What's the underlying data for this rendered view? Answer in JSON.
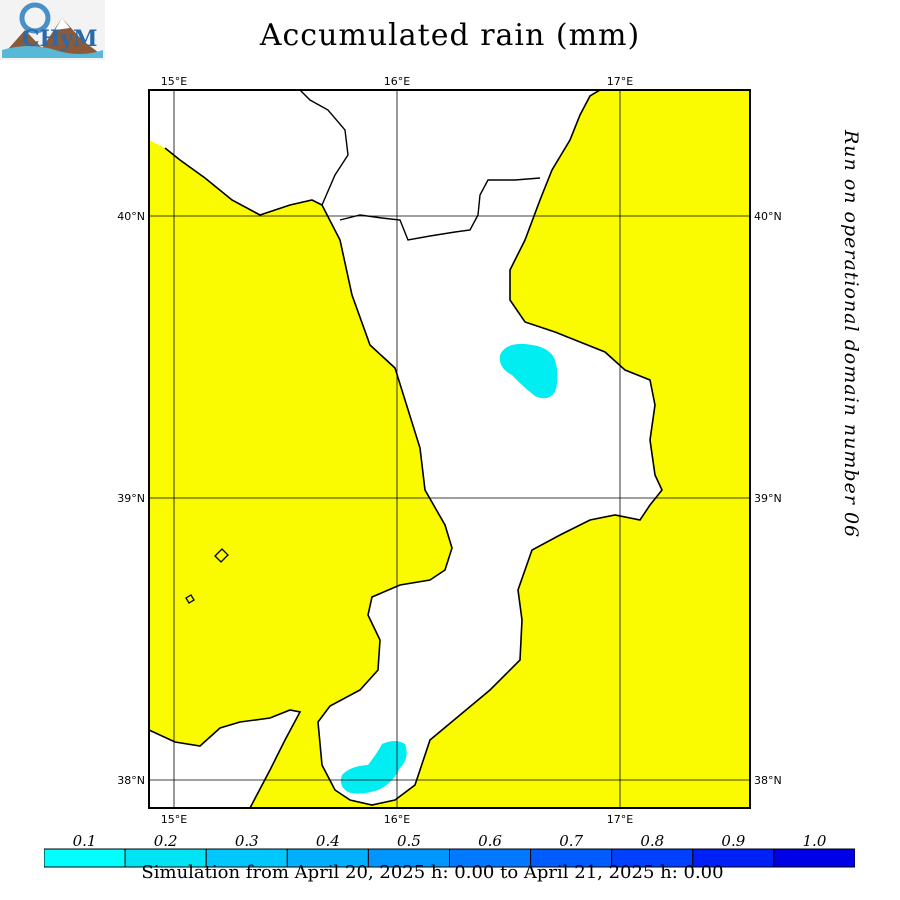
{
  "header": {
    "title": "Accumulated rain (mm)",
    "logo_text": "CHyM"
  },
  "side_note": "Run on operational domain number 06",
  "map": {
    "lon_ticks_top": [
      "15°E",
      "16°E",
      "17°E"
    ],
    "lon_ticks_bottom": [
      "15°E",
      "16°E",
      "17°E"
    ],
    "lat_ticks_left": [
      "40°N",
      "39°N",
      "38°N"
    ],
    "lat_ticks_right": [
      "40°N",
      "39°N",
      "38°N"
    ],
    "sea_color": "#fbfb00",
    "land_color": "#ffffff",
    "rain_color": "#00eef2"
  },
  "legend": {
    "labels": [
      "0.1",
      "0.2",
      "0.3",
      "0.4",
      "0.5",
      "0.6",
      "0.7",
      "0.8",
      "0.9",
      "1.0"
    ],
    "colors": [
      "#00ffff",
      "#00e3f5",
      "#00c8ff",
      "#00b0ff",
      "#0096ff",
      "#0078ff",
      "#005cff",
      "#0040ff",
      "#0020f8",
      "#0000e6"
    ]
  },
  "footer": "Simulation from April 20, 2025 h: 0.00 to April 21, 2025 h: 0.00"
}
